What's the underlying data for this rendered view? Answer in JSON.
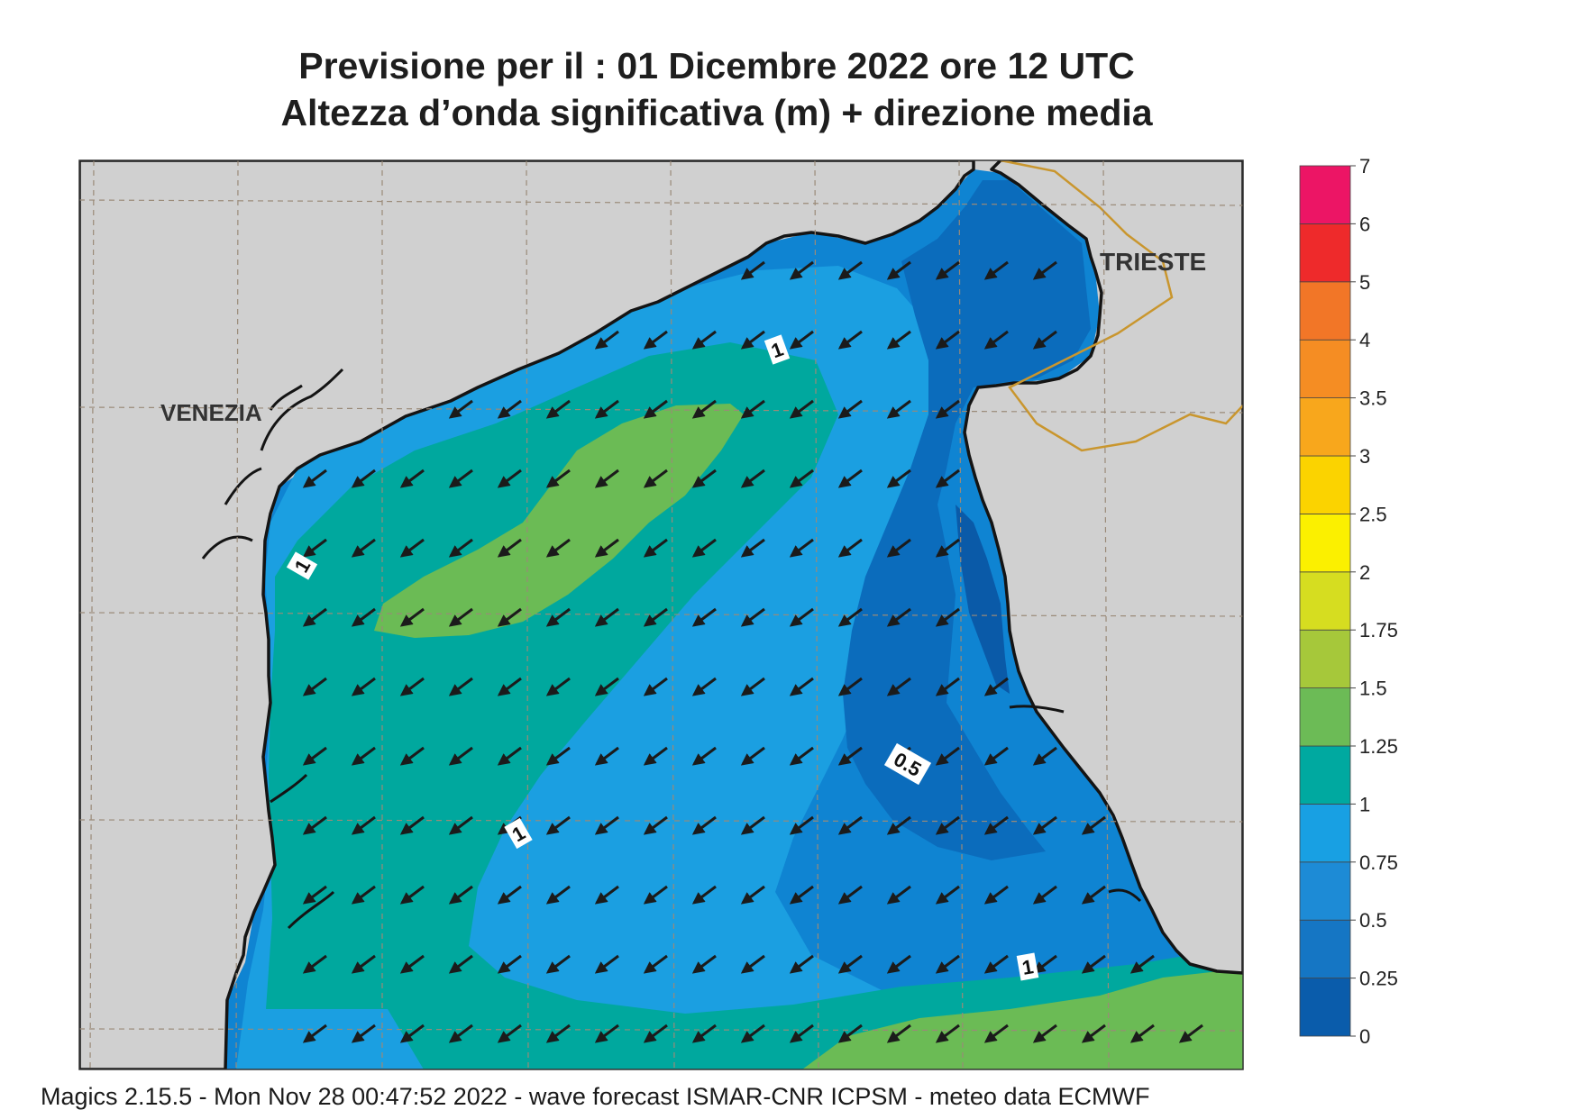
{
  "title": {
    "line1": "Previsione per il  :  01 Dicembre  2022   ore 12 UTC",
    "line2": "Altezza d’onda significativa (m) + direzione media"
  },
  "map": {
    "region": "Northern Adriatic Sea",
    "cities": [
      "VENEZIA",
      "TRIESTE"
    ],
    "contour_labels": [
      "1",
      "1",
      "0.5",
      "1",
      "1"
    ],
    "land_color": "#d0d0d0",
    "coast_color": "#141414",
    "border_color": "#c9962e",
    "arrow_color": "#1b1b1b",
    "arrow_direction": "towards south-west"
  },
  "colorbar": {
    "ticks": [
      "0",
      "0.25",
      "0.5",
      "0.75",
      "1",
      "1.25",
      "1.5",
      "1.75",
      "2",
      "2.5",
      "3",
      "3.5",
      "4",
      "5",
      "6",
      "7"
    ],
    "colors": [
      "#0a5cab",
      "#1576c4",
      "#1d8bd6",
      "#18a0e3",
      "#00a9a0",
      "#6cbb56",
      "#a6c83a",
      "#d6dd20",
      "#fbf000",
      "#fbd300",
      "#f8a71c",
      "#f58d23",
      "#f27627",
      "#ee2a2b",
      "#ec1565"
    ]
  },
  "footer": {
    "text": "Magics 2.15.5 - Mon Nov 28 00:47:52 2022 - wave forecast  ISMAR-CNR  ICPSM - meteo data   ECMWF"
  }
}
